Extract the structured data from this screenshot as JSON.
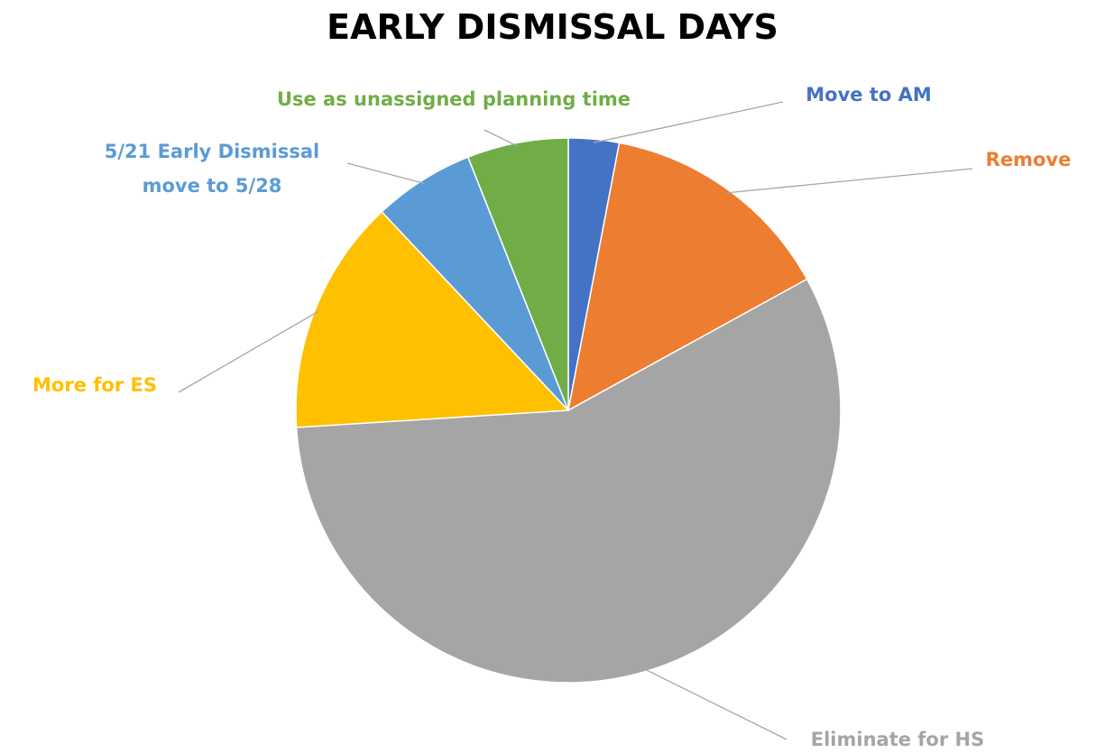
{
  "chart_data": {
    "type": "pie",
    "title": "EARLY DISMISSAL DAYS",
    "categories": [
      "Move to AM",
      "Remove",
      "Eliminate for HS",
      "More for ES",
      "5/21 Early Dismissal move to 5/28",
      "Use as unassigned planning time"
    ],
    "values": [
      3,
      14,
      57,
      14,
      6,
      6
    ],
    "colors": [
      "#4472c4",
      "#ed7d31",
      "#a5a5a5",
      "#ffc000",
      "#5b9bd5",
      "#70ad47"
    ],
    "start_angle": 0,
    "direction": "clockwise"
  }
}
